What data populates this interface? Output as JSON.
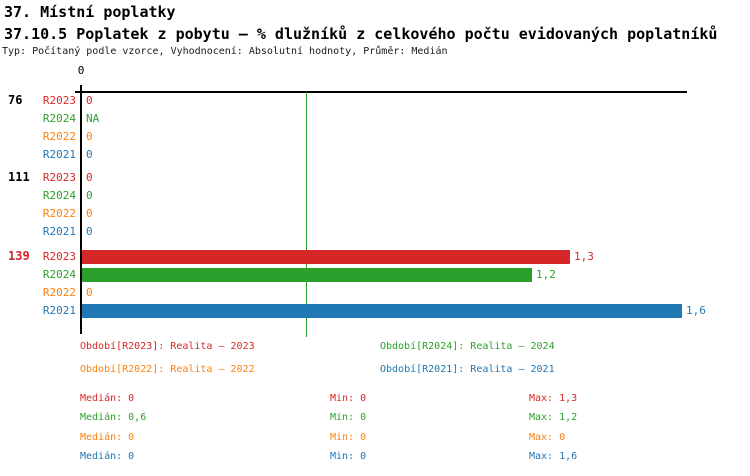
{
  "header": {
    "title": "37. Místní poplatky",
    "subtitle": "37.10.5 Poplatek z pobytu – % dlužníků z celkového počtu evidovaných poplatníků",
    "meta": "Typ: Počítaný podle vzorce, Vyhodnocení: Absolutní hodnoty, Průměr: Medián"
  },
  "colors": {
    "R2023": "#D62728",
    "R2024": "#2CA02C",
    "R2022": "#FF7F0E",
    "R2021": "#1F77B4",
    "axis": "#000000",
    "median_line": "#2CA02C",
    "group_label_highlight": "#D62728"
  },
  "chart_data": {
    "type": "bar",
    "orientation": "horizontal",
    "title": "37.10.5 Poplatek z pobytu – % dlužníků z celkového počtu evidovaných poplatníků",
    "xlabel": "",
    "ylabel": "",
    "xlim": [
      0,
      1.62
    ],
    "axis_tick_label": "0",
    "median_line_value": 0.6,
    "series_order": [
      "R2023",
      "R2024",
      "R2022",
      "R2021"
    ],
    "groups": [
      {
        "label": "76",
        "label_color": "#000000",
        "rows": [
          {
            "series": "R2023",
            "value": 0,
            "display": "0"
          },
          {
            "series": "R2024",
            "value": null,
            "display": "NA"
          },
          {
            "series": "R2022",
            "value": 0,
            "display": "0"
          },
          {
            "series": "R2021",
            "value": 0,
            "display": "0"
          }
        ]
      },
      {
        "label": "111",
        "label_color": "#000000",
        "rows": [
          {
            "series": "R2023",
            "value": 0,
            "display": "0"
          },
          {
            "series": "R2024",
            "value": 0,
            "display": "0"
          },
          {
            "series": "R2022",
            "value": 0,
            "display": "0"
          },
          {
            "series": "R2021",
            "value": 0,
            "display": "0"
          }
        ]
      },
      {
        "label": "139",
        "label_color": "#D62728",
        "rows": [
          {
            "series": "R2023",
            "value": 1.3,
            "display": "1,3"
          },
          {
            "series": "R2024",
            "value": 1.2,
            "display": "1,2"
          },
          {
            "series": "R2022",
            "value": 0,
            "display": "0"
          },
          {
            "series": "R2021",
            "value": 1.6,
            "display": "1,6"
          }
        ]
      }
    ],
    "legend": [
      {
        "series": "R2023",
        "text": "Období[R2023]: Realita – 2023"
      },
      {
        "series": "R2024",
        "text": "Období[R2024]: Realita – 2024"
      },
      {
        "series": "R2022",
        "text": "Období[R2022]: Realita – 2022"
      },
      {
        "series": "R2021",
        "text": "Období[R2021]: Realita – 2021"
      }
    ],
    "series_stats": [
      {
        "series": "R2023",
        "median": 0,
        "min": 0,
        "max": 1.3
      },
      {
        "series": "R2024",
        "median": 0.6,
        "min": 0,
        "max": 1.2
      },
      {
        "series": "R2022",
        "median": 0,
        "min": 0,
        "max": 0
      },
      {
        "series": "R2021",
        "median": 0,
        "min": 0,
        "max": 1.6
      }
    ]
  },
  "stats_panel": {
    "rows": [
      {
        "series": "R2023",
        "median": "Medián: 0",
        "min": "Min: 0",
        "max": "Max: 1,3"
      },
      {
        "series": "R2024",
        "median": "Medián: 0,6",
        "min": "Min: 0",
        "max": "Max: 1,2"
      },
      {
        "series": "R2022",
        "median": "Medián: 0",
        "min": "Min: 0",
        "max": "Max: 0"
      },
      {
        "series": "R2021",
        "median": "Medián: 0",
        "min": "Min: 0",
        "max": "Max: 1,6"
      }
    ]
  }
}
